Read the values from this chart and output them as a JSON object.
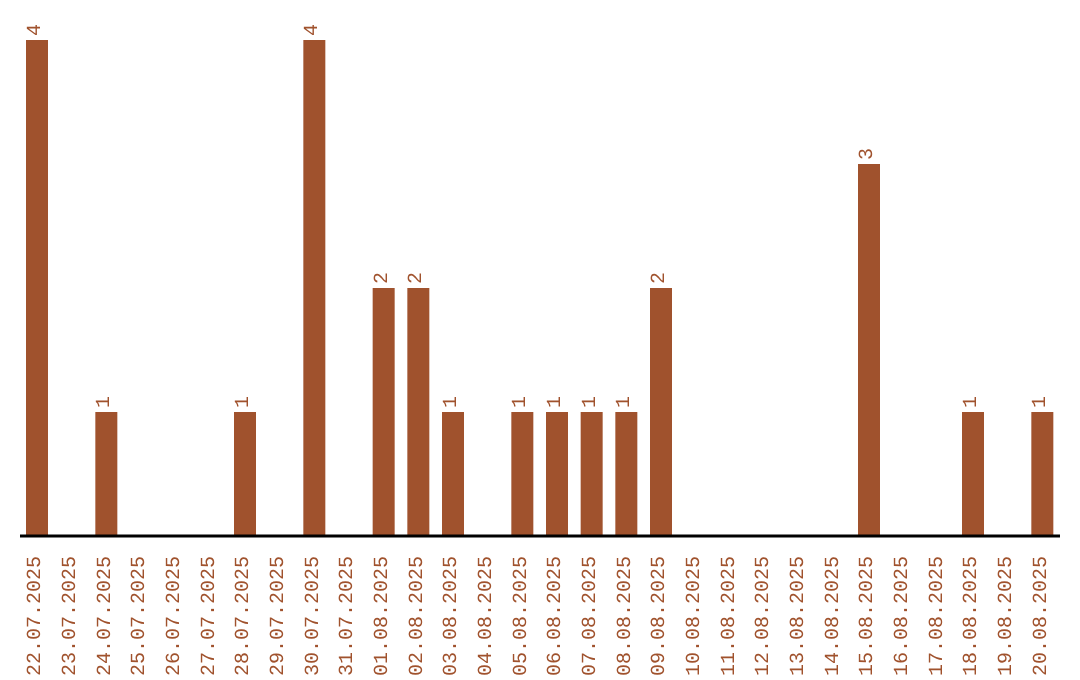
{
  "chart_data": {
    "type": "bar",
    "categories": [
      "22.07.2025",
      "23.07.2025",
      "24.07.2025",
      "25.07.2025",
      "26.07.2025",
      "27.07.2025",
      "28.07.2025",
      "29.07.2025",
      "30.07.2025",
      "31.07.2025",
      "01.08.2025",
      "02.08.2025",
      "03.08.2025",
      "04.08.2025",
      "05.08.2025",
      "06.08.2025",
      "07.08.2025",
      "08.08.2025",
      "09.08.2025",
      "10.08.2025",
      "11.08.2025",
      "12.08.2025",
      "13.08.2025",
      "14.08.2025",
      "15.08.2025",
      "16.08.2025",
      "17.08.2025",
      "18.08.2025",
      "19.08.2025",
      "20.08.2025"
    ],
    "values": [
      4,
      0,
      1,
      0,
      0,
      0,
      1,
      0,
      4,
      0,
      2,
      2,
      1,
      0,
      1,
      1,
      1,
      1,
      2,
      0,
      0,
      0,
      0,
      0,
      3,
      0,
      0,
      1,
      0,
      1
    ],
    "value_labels": [
      "4",
      null,
      "1",
      null,
      null,
      null,
      "1",
      null,
      "4",
      null,
      "2",
      "2",
      "1",
      null,
      "1",
      "1",
      "1",
      "1",
      "2",
      null,
      null,
      null,
      null,
      null,
      "3",
      null,
      null,
      "1",
      null,
      "1"
    ],
    "color": "#a0522d"
  }
}
